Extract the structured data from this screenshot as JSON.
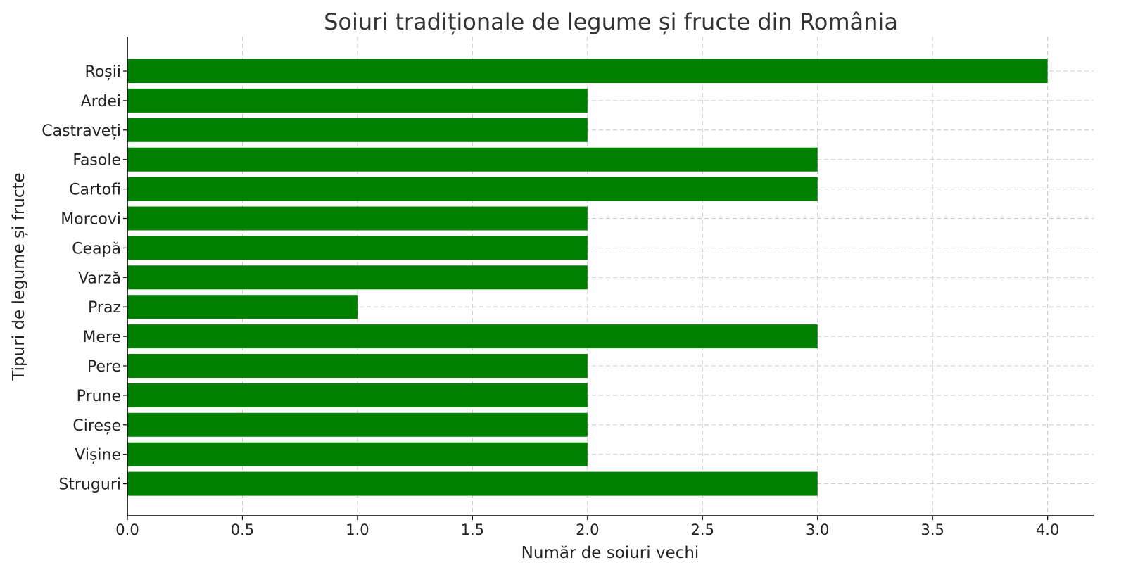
{
  "chart_data": {
    "type": "bar",
    "orientation": "horizontal",
    "title": "Soiuri tradiționale de legume și fructe din România",
    "xlabel": "Număr de soiuri vechi",
    "ylabel": "Tipuri de legume și fructe",
    "categories": [
      "Roșii",
      "Ardei",
      "Castraveți",
      "Fasole",
      "Cartofi",
      "Morcovi",
      "Ceapă",
      "Varză",
      "Praz",
      "Mere",
      "Pere",
      "Prune",
      "Cireșe",
      "Vișine",
      "Struguri"
    ],
    "values": [
      4,
      2,
      2,
      3,
      3,
      2,
      2,
      2,
      1,
      3,
      2,
      2,
      2,
      2,
      3
    ],
    "xlim": [
      0,
      4.2
    ],
    "xticks": [
      "0.0",
      "0.5",
      "1.0",
      "1.5",
      "2.0",
      "2.5",
      "3.0",
      "3.5",
      "4.0"
    ],
    "grid": true,
    "bar_color": "#008000"
  }
}
